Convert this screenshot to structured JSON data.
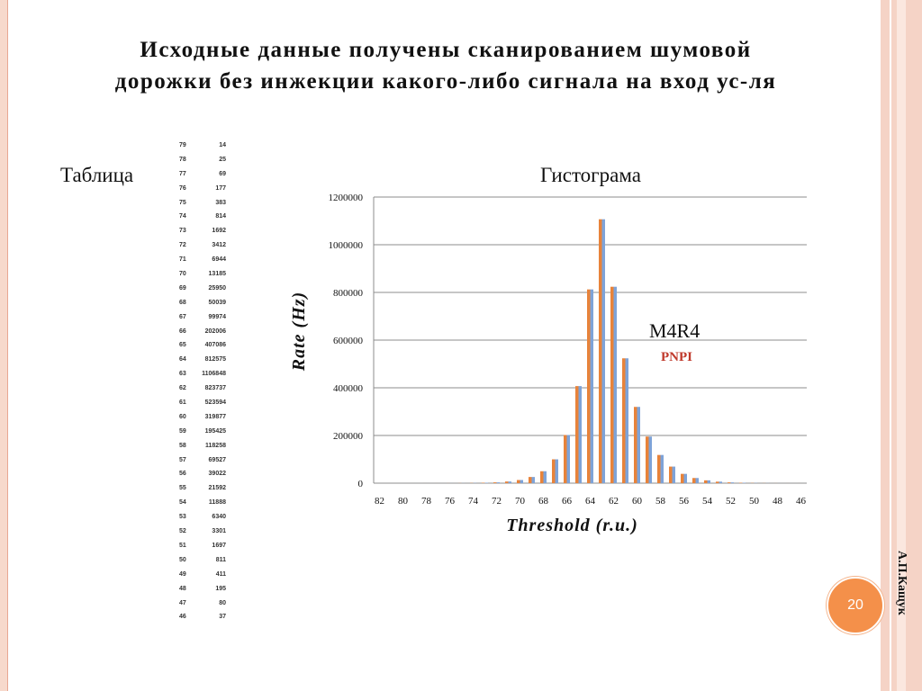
{
  "slide": {
    "title_line1": "Исходные данные получены сканированием шумовой",
    "title_line2": "дорожки без инжекции какого-либо сигнала на вход ус-ля",
    "table_label": "Таблица",
    "hist_label": "Гистограма",
    "page_number": "20",
    "author": "А.П.Кащук"
  },
  "table": [
    [
      79,
      14
    ],
    [
      78,
      25
    ],
    [
      77,
      69
    ],
    [
      76,
      177
    ],
    [
      75,
      383
    ],
    [
      74,
      814
    ],
    [
      73,
      1692
    ],
    [
      72,
      3412
    ],
    [
      71,
      6944
    ],
    [
      70,
      13185
    ],
    [
      69,
      25950
    ],
    [
      68,
      50039
    ],
    [
      67,
      99974
    ],
    [
      66,
      202006
    ],
    [
      65,
      407086
    ],
    [
      64,
      812575
    ],
    [
      63,
      1106848
    ],
    [
      62,
      823737
    ],
    [
      61,
      523594
    ],
    [
      60,
      319877
    ],
    [
      59,
      195425
    ],
    [
      58,
      118258
    ],
    [
      57,
      69527
    ],
    [
      56,
      39022
    ],
    [
      55,
      21592
    ],
    [
      54,
      11888
    ],
    [
      53,
      6340
    ],
    [
      52,
      3301
    ],
    [
      51,
      1697
    ],
    [
      50,
      811
    ],
    [
      49,
      411
    ],
    [
      48,
      195
    ],
    [
      47,
      80
    ],
    [
      46,
      37
    ]
  ],
  "chart_data": {
    "type": "bar",
    "xlabel": "Threshold (r.u.)",
    "ylabel": "Rate (Hz)",
    "ylim": [
      0,
      1200000
    ],
    "yticks": [
      0,
      200000,
      400000,
      600000,
      800000,
      1000000,
      1200000
    ],
    "grid": true,
    "annotation_main": "M4R4",
    "annotation_sub": "PNPI",
    "categories": [
      82,
      81,
      80,
      79,
      78,
      77,
      76,
      75,
      74,
      73,
      72,
      71,
      70,
      69,
      68,
      67,
      66,
      65,
      64,
      63,
      62,
      61,
      60,
      59,
      58,
      57,
      56,
      55,
      54,
      53,
      52,
      51,
      50,
      49,
      48,
      47,
      46
    ],
    "tick_labels": [
      82,
      80,
      78,
      76,
      74,
      72,
      70,
      68,
      66,
      64,
      62,
      60,
      58,
      56,
      54,
      52,
      50,
      48,
      46
    ],
    "values": [
      0,
      0,
      0,
      14,
      25,
      69,
      177,
      383,
      814,
      1692,
      3412,
      6944,
      13185,
      25950,
      50039,
      99974,
      202006,
      407086,
      812575,
      1106848,
      823737,
      523594,
      319877,
      195425,
      118258,
      69527,
      39022,
      21592,
      11888,
      6340,
      3301,
      1697,
      811,
      411,
      195,
      80,
      37
    ],
    "colors": {
      "bar_a": "#e8833a",
      "bar_b": "#7ea3d8",
      "annotation_sub": "#c0392b",
      "grid": "#8c8c8c"
    }
  }
}
